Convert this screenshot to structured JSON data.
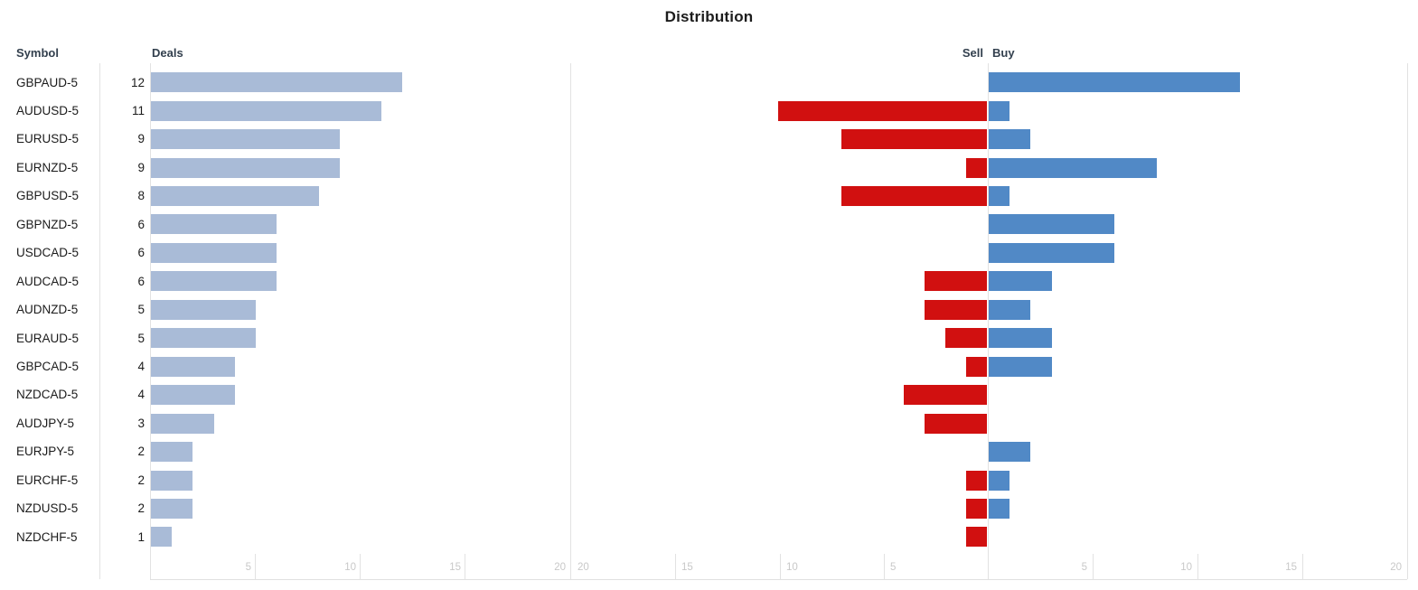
{
  "labels": {
    "title": "Distribution",
    "symbol_header": "Symbol",
    "deals_header": "Deals",
    "sell_header": "Sell",
    "buy_header": "Buy"
  },
  "colors": {
    "deals_bar": "#a9bbd7",
    "sell_bar": "#d11010",
    "buy_bar": "#5189c6",
    "grid": "#e2e2e2",
    "tick_label": "#c8c8c8",
    "text": "#1b1b1b",
    "header_text": "#33404e"
  },
  "chart_data": {
    "type": "bar",
    "title": "Distribution",
    "categories": [
      "GBPAUD-5",
      "AUDUSD-5",
      "EURUSD-5",
      "EURNZD-5",
      "GBPUSD-5",
      "GBPNZD-5",
      "USDCAD-5",
      "AUDCAD-5",
      "AUDNZD-5",
      "EURAUD-5",
      "GBPCAD-5",
      "NZDCAD-5",
      "AUDJPY-5",
      "EURJPY-5",
      "EURCHF-5",
      "NZDUSD-5",
      "NZDCHF-5"
    ],
    "series": [
      {
        "name": "Deals",
        "values": [
          12,
          11,
          9,
          9,
          8,
          6,
          6,
          6,
          5,
          5,
          4,
          4,
          3,
          2,
          2,
          2,
          1
        ]
      },
      {
        "name": "Sell",
        "values": [
          0,
          10,
          7,
          1,
          7,
          0,
          0,
          3,
          3,
          2,
          1,
          4,
          3,
          0,
          1,
          1,
          1
        ]
      },
      {
        "name": "Buy",
        "values": [
          12,
          1,
          2,
          8,
          1,
          6,
          6,
          3,
          2,
          3,
          3,
          0,
          0,
          2,
          1,
          1,
          0
        ]
      }
    ],
    "axes": {
      "deals": {
        "ticks": [
          5,
          10,
          15,
          20
        ],
        "range": [
          0,
          20
        ]
      },
      "sell": {
        "ticks": [
          20,
          15,
          10,
          5
        ],
        "range": [
          20,
          0
        ]
      },
      "buy": {
        "ticks": [
          5,
          10,
          15,
          20
        ],
        "range": [
          0,
          20
        ]
      }
    },
    "legend_position": "none",
    "grid": "bottom-ticks-only"
  }
}
